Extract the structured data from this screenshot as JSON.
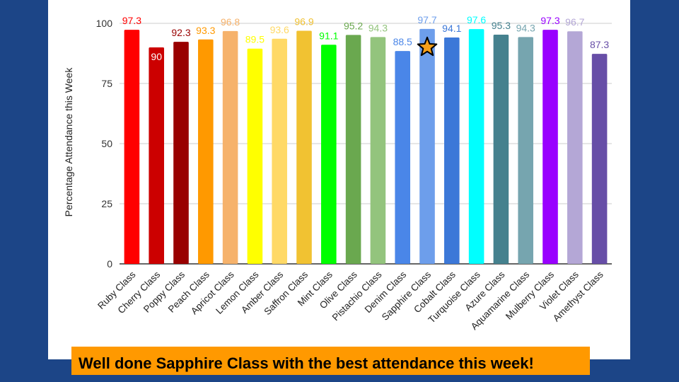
{
  "chart_data": {
    "type": "bar",
    "title": "",
    "xlabel": "",
    "ylabel": "Percentage Attendance this Week",
    "ylim": [
      0,
      100
    ],
    "yticks": [
      0,
      25,
      50,
      75,
      100
    ],
    "grid": true,
    "legend": "none",
    "categories": [
      "Ruby Class",
      "Cherry Class",
      "Poppy Class",
      "Peach Class",
      "Apricot Class",
      "Lemon Class",
      "Amber Class",
      "Saffron Class",
      "Mint Class",
      "Olive Class",
      "Pistachio Class",
      "Denim Class",
      "Sapphire Class",
      "Cobalt Class",
      "Turquoise Class",
      "Azure Class",
      "Aquamarine Class",
      "Mulberry Class",
      "Violet Class",
      "Amethyst Class"
    ],
    "values": [
      97.3,
      90,
      92.3,
      93.3,
      96.8,
      89.5,
      93.6,
      96.9,
      91.1,
      95.2,
      94.3,
      88.5,
      97.7,
      94.1,
      97.6,
      95.3,
      94.3,
      97.3,
      96.7,
      87.3
    ],
    "colors": [
      "#ff0000",
      "#cc0000",
      "#990000",
      "#ff9900",
      "#f6b26b",
      "#ffff00",
      "#ffd966",
      "#f1c232",
      "#00ff00",
      "#6aa84f",
      "#93c47d",
      "#4a86e8",
      "#6d9eeb",
      "#3c78d8",
      "#00ffff",
      "#45818e",
      "#76a5af",
      "#9900ff",
      "#b4a7d6",
      "#674ea7"
    ],
    "highlight": {
      "category": "Sapphire Class",
      "marker": "star-icon",
      "marker_color": "#f6a01a"
    }
  },
  "banner": {
    "text": "Well done Sapphire Class with the best attendance this week!",
    "background": "#ff9900"
  },
  "page": {
    "background": "#1c4587",
    "panel_background": "#ffffff"
  }
}
